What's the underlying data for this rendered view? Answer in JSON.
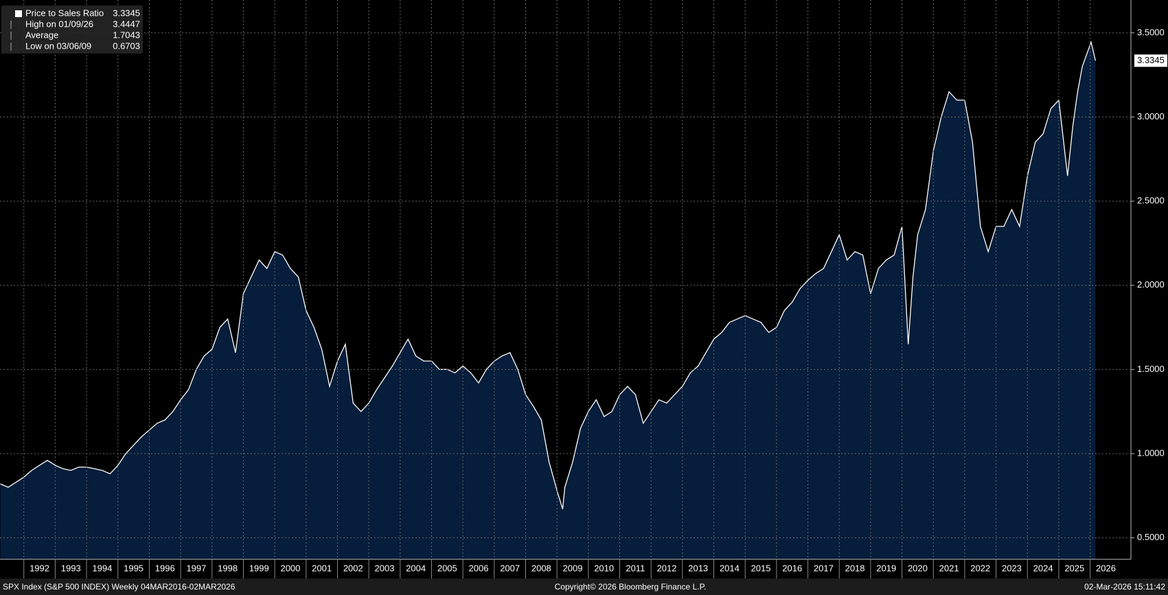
{
  "chart_data": {
    "type": "area",
    "series": [
      {
        "name": "Price to Sales Ratio",
        "color": "#ffffff",
        "fill": "#061d3b",
        "x": [
          1991.25,
          1991.5,
          1991.75,
          1992,
          1992.25,
          1992.5,
          1992.75,
          1993,
          1993.25,
          1993.5,
          1993.75,
          1994,
          1994.25,
          1994.5,
          1994.75,
          1995,
          1995.25,
          1995.5,
          1995.75,
          1996,
          1996.25,
          1996.5,
          1996.75,
          1997,
          1997.25,
          1997.5,
          1997.75,
          1998,
          1998.25,
          1998.5,
          1998.75,
          1999,
          1999.25,
          1999.5,
          1999.75,
          2000,
          2000.25,
          2000.5,
          2000.75,
          2001,
          2001.25,
          2001.5,
          2001.75,
          2002,
          2002.25,
          2002.5,
          2002.75,
          2003,
          2003.25,
          2003.5,
          2003.75,
          2004,
          2004.25,
          2004.5,
          2004.75,
          2005,
          2005.25,
          2005.5,
          2005.75,
          2006,
          2006.25,
          2006.5,
          2006.75,
          2007,
          2007.25,
          2007.5,
          2007.75,
          2008,
          2008.25,
          2008.5,
          2008.75,
          2009,
          2009.18,
          2009.25,
          2009.5,
          2009.75,
          2010,
          2010.25,
          2010.5,
          2010.75,
          2011,
          2011.25,
          2011.5,
          2011.75,
          2012,
          2012.25,
          2012.5,
          2012.75,
          2013,
          2013.25,
          2013.5,
          2013.75,
          2014,
          2014.25,
          2014.5,
          2014.75,
          2015,
          2015.25,
          2015.5,
          2015.75,
          2016,
          2016.25,
          2016.5,
          2016.75,
          2017,
          2017.25,
          2017.5,
          2017.75,
          2018,
          2018.25,
          2018.5,
          2018.75,
          2019,
          2019.25,
          2019.5,
          2019.75,
          2020,
          2020.2,
          2020.35,
          2020.5,
          2020.75,
          2021,
          2021.25,
          2021.5,
          2021.75,
          2022,
          2022.25,
          2022.5,
          2022.75,
          2023,
          2023.25,
          2023.5,
          2023.75,
          2024,
          2024.25,
          2024.5,
          2024.75,
          2025,
          2025.28,
          2025.45,
          2025.6,
          2025.75,
          2026.03,
          2026.17
        ],
        "values": [
          0.82,
          0.8,
          0.83,
          0.86,
          0.9,
          0.93,
          0.96,
          0.93,
          0.91,
          0.9,
          0.92,
          0.92,
          0.91,
          0.9,
          0.88,
          0.93,
          1.0,
          1.05,
          1.1,
          1.14,
          1.18,
          1.2,
          1.25,
          1.32,
          1.38,
          1.5,
          1.58,
          1.62,
          1.75,
          1.8,
          1.6,
          1.95,
          2.05,
          2.15,
          2.1,
          2.2,
          2.18,
          2.1,
          2.05,
          1.85,
          1.75,
          1.62,
          1.4,
          1.55,
          1.65,
          1.3,
          1.25,
          1.3,
          1.38,
          1.45,
          1.52,
          1.6,
          1.68,
          1.58,
          1.55,
          1.55,
          1.5,
          1.5,
          1.48,
          1.52,
          1.48,
          1.42,
          1.5,
          1.55,
          1.58,
          1.6,
          1.5,
          1.35,
          1.28,
          1.2,
          0.95,
          0.78,
          0.6703,
          0.8,
          0.95,
          1.15,
          1.25,
          1.32,
          1.22,
          1.25,
          1.35,
          1.4,
          1.35,
          1.18,
          1.25,
          1.32,
          1.3,
          1.35,
          1.4,
          1.48,
          1.52,
          1.6,
          1.68,
          1.72,
          1.78,
          1.8,
          1.82,
          1.8,
          1.78,
          1.72,
          1.75,
          1.85,
          1.9,
          1.98,
          2.03,
          2.07,
          2.1,
          2.2,
          2.3,
          2.15,
          2.2,
          2.18,
          1.95,
          2.1,
          2.15,
          2.18,
          2.35,
          1.65,
          2.05,
          2.3,
          2.45,
          2.8,
          3.0,
          3.15,
          3.1,
          3.1,
          2.85,
          2.35,
          2.2,
          2.35,
          2.35,
          2.45,
          2.35,
          2.65,
          2.85,
          2.9,
          3.05,
          3.1,
          2.65,
          2.95,
          3.15,
          3.3,
          3.4447,
          3.3345
        ]
      }
    ],
    "legend": {
      "high_label": "High on 01/09/26",
      "average_label": "Average",
      "average": 1.7043,
      "low_label": "Low on 03/06/09"
    },
    "xlim": [
      1991.24,
      2027.3
    ],
    "xticks": [
      1992,
      1993,
      1994,
      1995,
      1996,
      1997,
      1998,
      1999,
      2000,
      2001,
      2002,
      2003,
      2004,
      2005,
      2006,
      2007,
      2008,
      2009,
      2010,
      2011,
      2012,
      2013,
      2014,
      2015,
      2016,
      2017,
      2018,
      2019,
      2020,
      2021,
      2022,
      2023,
      2024,
      2025,
      2026
    ],
    "ylim": [
      0.372,
      3.695
    ],
    "yticks": [
      {
        "value": 0.5,
        "label": "0.5000"
      },
      {
        "value": 1,
        "label": "1.0000"
      },
      {
        "value": 1.5,
        "label": "1.5000"
      },
      {
        "value": 2,
        "label": "2.0000"
      },
      {
        "value": 2.5,
        "label": "2.5000"
      },
      {
        "value": 3,
        "label": "3.0000"
      },
      {
        "value": 3.5,
        "label": "3.5000"
      }
    ],
    "grid": true
  },
  "footer": {
    "left": "SPX Index (S&P 500 INDEX) Weekly 04MAR2016-02MAR2026",
    "center": "Copyright© 2026 Bloomberg Finance L.P.",
    "right": "02-Mar-2026 15:11:42"
  }
}
